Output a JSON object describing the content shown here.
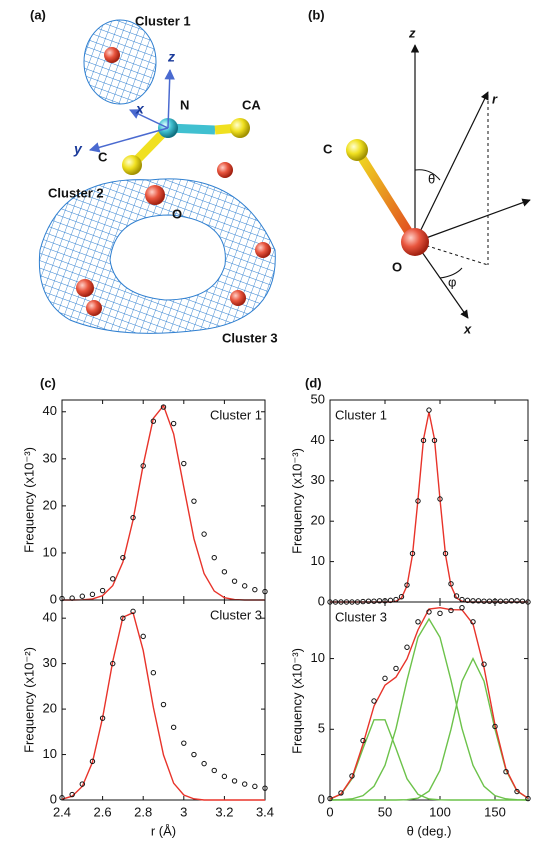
{
  "panels": {
    "a": {
      "label": "(a)",
      "cluster1": "Cluster 1",
      "z": "z",
      "x": "x",
      "n": "N",
      "ca": "CA",
      "y": "y",
      "c": "C",
      "cluster2": "Cluster 2",
      "o": "O",
      "cluster3": "Cluster 3"
    },
    "b": {
      "label": "(b)",
      "z": "z",
      "r": "r",
      "c": "C",
      "theta": "θ",
      "o": "O",
      "phi": "φ",
      "x": "x"
    },
    "c": {
      "label": "(c)"
    },
    "d": {
      "label": "(d)"
    }
  },
  "chart_data": [
    {
      "type": "line",
      "annotation": "Cluster 1",
      "ylabel": "Frequency (x10⁻³)",
      "x": [
        2.4,
        2.45,
        2.5,
        2.55,
        2.6,
        2.65,
        2.7,
        2.75,
        2.8,
        2.85,
        2.9,
        2.95,
        3.0,
        3.05,
        3.1,
        3.15,
        3.2,
        3.25,
        3.3,
        3.35,
        3.4
      ],
      "xlim": [
        2.4,
        3.4
      ],
      "xticks": [
        2.4,
        2.6,
        2.8,
        3.0,
        3.2,
        3.4
      ],
      "ylim": [
        0,
        42.5
      ],
      "yticks": [
        0,
        10,
        20,
        30,
        40
      ],
      "series": [
        {
          "style": "line",
          "color": "#e8332a",
          "values": [
            0,
            0,
            0.04,
            0.22,
            0.92,
            3.05,
            8.07,
            17.0,
            28.7,
            38.6,
            41.3,
            35.3,
            24.0,
            13.0,
            5.6,
            1.9,
            0.5,
            0.1,
            0,
            0,
            0
          ]
        },
        {
          "style": "markers",
          "color": "#111111",
          "values": [
            0.3,
            0.4,
            0.8,
            1.2,
            2.0,
            4.5,
            9,
            17.5,
            28.5,
            38,
            41,
            37.5,
            29,
            21,
            14,
            9,
            6,
            4,
            3,
            2.2,
            1.8
          ]
        }
      ]
    },
    {
      "type": "line",
      "annotation": "Cluster 3",
      "ylabel": "Frequency (x10⁻²)",
      "xlabel": "r (Å)",
      "x": [
        2.4,
        2.45,
        2.5,
        2.55,
        2.6,
        2.65,
        2.7,
        2.75,
        2.8,
        2.85,
        2.9,
        2.95,
        3.0,
        3.05,
        3.1,
        3.15,
        3.2,
        3.25,
        3.3,
        3.35,
        3.4
      ],
      "xlim": [
        2.4,
        3.4
      ],
      "xticks": [
        2.4,
        2.6,
        2.8,
        3.0,
        3.2,
        3.4
      ],
      "ylim": [
        0,
        44
      ],
      "yticks": [
        0,
        10,
        20,
        30,
        40
      ],
      "series": [
        {
          "style": "line",
          "color": "#e8332a",
          "values": [
            0.19,
            0.83,
            3.0,
            8.3,
            18.1,
            30.5,
            40.2,
            41.2,
            32.9,
            20.4,
            9.9,
            3.7,
            1.1,
            0.25,
            0,
            0,
            0,
            0,
            0,
            0,
            0
          ]
        },
        {
          "style": "markers",
          "color": "#111111",
          "values": [
            0.5,
            1.2,
            3.5,
            8.5,
            18,
            30,
            40,
            41.5,
            36,
            28,
            21,
            16,
            12.5,
            10,
            8,
            6.5,
            5.2,
            4.2,
            3.5,
            3,
            2.6
          ]
        }
      ]
    },
    {
      "type": "line",
      "annotation": "Cluster 1",
      "ylabel": "Frequency (x10⁻³)",
      "x": [
        0,
        5,
        10,
        15,
        20,
        25,
        30,
        35,
        40,
        45,
        50,
        55,
        60,
        65,
        70,
        75,
        80,
        85,
        90,
        95,
        100,
        105,
        110,
        115,
        120,
        125,
        130,
        135,
        140,
        145,
        150,
        155,
        160,
        165,
        170,
        175,
        180
      ],
      "xlim": [
        0,
        180
      ],
      "xticks": [
        0,
        50,
        100,
        150
      ],
      "ylim": [
        0,
        50
      ],
      "yticks": [
        0,
        10,
        20,
        30,
        40,
        50
      ],
      "series": [
        {
          "style": "line",
          "color": "#e8332a",
          "values": [
            0,
            0,
            0,
            0,
            0,
            0,
            0,
            0,
            0,
            0,
            0,
            0,
            0.2,
            1.0,
            4.0,
            11.7,
            25.4,
            40.3,
            47,
            40.3,
            25.4,
            11.7,
            4.0,
            1.0,
            0.2,
            0,
            0,
            0,
            0,
            0,
            0,
            0,
            0,
            0,
            0,
            0,
            0
          ]
        },
        {
          "style": "markers",
          "color": "#111111",
          "values": [
            0,
            0,
            0,
            0,
            0,
            0,
            0.1,
            0.2,
            0.2,
            0.3,
            0.3,
            0.4,
            0.6,
            1.3,
            4.2,
            12,
            25,
            40,
            47.5,
            40,
            25.5,
            12,
            4.5,
            1.5,
            0.6,
            0.4,
            0.3,
            0.3,
            0.2,
            0.2,
            0.2,
            0.2,
            0.2,
            0.3,
            0.3,
            0.2,
            0
          ]
        }
      ]
    },
    {
      "type": "line",
      "annotation": "Cluster 3",
      "ylabel": "Frequency (x10⁻³)",
      "xlabel": "θ (deg.)",
      "x": [
        0,
        10,
        20,
        30,
        40,
        50,
        60,
        70,
        80,
        90,
        100,
        110,
        120,
        130,
        140,
        150,
        160,
        170,
        180
      ],
      "xlim": [
        0,
        180
      ],
      "xticks": [
        0,
        50,
        100,
        150
      ],
      "ylim": [
        0,
        14
      ],
      "yticks": [
        0,
        5,
        10
      ],
      "series": [
        {
          "style": "line",
          "color": "#6cc24a",
          "values": [
            0.07,
            0.4,
            1.5,
            3.64,
            5.67,
            5.67,
            3.64,
            1.5,
            0.4,
            0.07,
            0.01,
            0,
            0,
            0,
            0,
            0,
            0,
            0,
            0
          ]
        },
        {
          "style": "line",
          "color": "#6cc24a",
          "values": [
            0,
            0.02,
            0.08,
            0.31,
            0.97,
            2.45,
            5.05,
            8.46,
            11.5,
            12.8,
            11.5,
            8.46,
            5.05,
            2.45,
            0.97,
            0.31,
            0.08,
            0.02,
            0
          ]
        },
        {
          "style": "line",
          "color": "#6cc24a",
          "values": [
            0,
            0,
            0,
            0,
            0,
            0,
            0,
            0.02,
            0.13,
            0.63,
            2.1,
            5.0,
            8.4,
            10,
            8.4,
            5.0,
            2.1,
            0.63,
            0.13
          ]
        },
        {
          "style": "line",
          "color": "#e8332a",
          "values": [
            0.07,
            0.42,
            1.58,
            3.95,
            6.64,
            8.12,
            8.69,
            9.98,
            12.03,
            13.5,
            13.6,
            13.46,
            13.45,
            12.45,
            9.37,
            5.31,
            2.18,
            0.65,
            0.13
          ]
        },
        {
          "style": "markers",
          "color": "#111111",
          "values": [
            0.1,
            0.5,
            1.7,
            4.2,
            7.0,
            8.6,
            9.3,
            10.8,
            12.6,
            13.3,
            13.2,
            13.4,
            13.6,
            12.6,
            9.6,
            5.2,
            2.0,
            0.6,
            0.1
          ]
        }
      ]
    }
  ]
}
